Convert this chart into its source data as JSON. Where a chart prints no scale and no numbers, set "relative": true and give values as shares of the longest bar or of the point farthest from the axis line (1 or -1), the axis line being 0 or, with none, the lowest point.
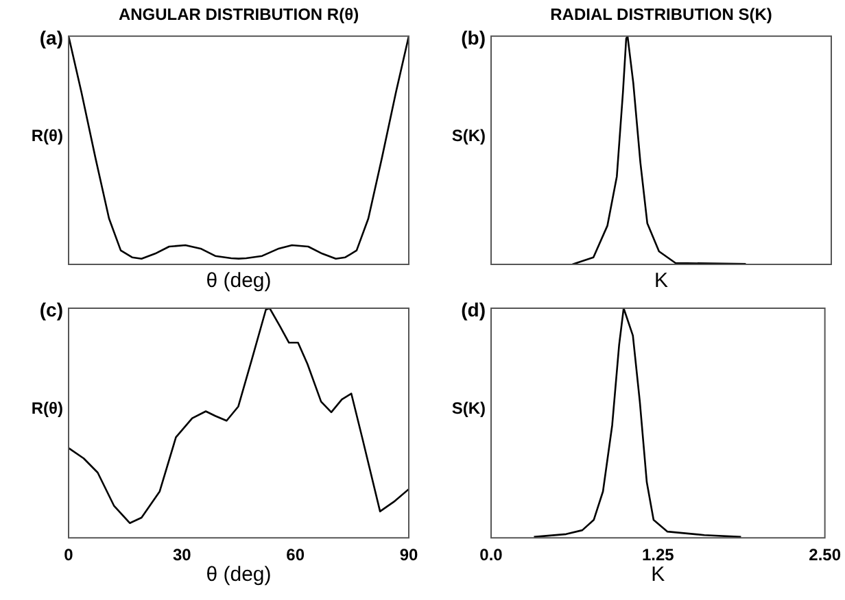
{
  "chart_data": [
    {
      "type": "line",
      "title": "ANGULAR DISTRIBUTION R(θ)",
      "xlabel": "θ (deg)",
      "ylabel": "R(θ)",
      "annotations": [
        "(a)"
      ],
      "relative": true,
      "tick_labels": false,
      "xlim": [
        0,
        90
      ],
      "x": [
        0,
        3.4,
        7.1,
        10.7,
        13.8,
        16.8,
        19.3,
        22.9,
        26.6,
        30.9,
        35.1,
        38.8,
        43.0,
        45,
        47.0,
        51.2,
        55.4,
        59.1,
        63.4,
        67.1,
        70.7,
        73.2,
        76.2,
        79.3,
        82.9,
        86.6,
        90
      ],
      "series": [
        {
          "color": "#000000",
          "values": [
            1.0,
            0.754,
            0.467,
            0.201,
            0.061,
            0.031,
            0.025,
            0.047,
            0.078,
            0.084,
            0.068,
            0.037,
            0.027,
            0.025,
            0.027,
            0.037,
            0.068,
            0.084,
            0.078,
            0.047,
            0.025,
            0.031,
            0.061,
            0.201,
            0.467,
            0.754,
            1.0
          ]
        }
      ]
    },
    {
      "type": "line",
      "title": "RADIAL DISTRIBUTION S(K)",
      "xlabel": "K",
      "ylabel": "S(K)",
      "annotations": [
        "(b)"
      ],
      "relative": true,
      "tick_labels": false,
      "xlim": [
        0,
        2.5
      ],
      "x": [
        0.597,
        0.752,
        0.855,
        0.924,
        0.969,
        0.993,
        1.003,
        1.045,
        1.097,
        1.148,
        1.234,
        1.355,
        1.872
      ],
      "series": [
        {
          "color": "#000000",
          "values": [
            0,
            0.031,
            0.17,
            0.385,
            0.754,
            0.99,
            1.0,
            0.795,
            0.447,
            0.18,
            0.057,
            0.006,
            0.002
          ]
        }
      ]
    },
    {
      "type": "line",
      "xlabel": "θ (deg)",
      "ylabel": "R(θ)",
      "annotations": [
        "(c)"
      ],
      "relative": true,
      "tick_labels": "x",
      "xlim": [
        0,
        90
      ],
      "xticks": [
        0,
        30,
        60,
        90
      ],
      "x": [
        0,
        4.0,
        7.7,
        12.0,
        16.2,
        19.3,
        24.1,
        28.4,
        32.7,
        36.3,
        38.8,
        41.8,
        44.9,
        48.5,
        52.2,
        53.2,
        55.9,
        58.3,
        60.7,
        63.2,
        66.8,
        69.5,
        72.3,
        74.8,
        77.8,
        82.4,
        86.3,
        90
      ],
      "series": [
        {
          "color": "#000000",
          "values": [
            0.391,
            0.346,
            0.284,
            0.14,
            0.064,
            0.088,
            0.202,
            0.438,
            0.521,
            0.551,
            0.531,
            0.51,
            0.572,
            0.778,
            0.994,
            1.0,
            0.922,
            0.85,
            0.85,
            0.757,
            0.593,
            0.547,
            0.603,
            0.628,
            0.428,
            0.115,
            0.16,
            0.212
          ]
        }
      ]
    },
    {
      "type": "line",
      "xlabel": "K",
      "ylabel": "S(K)",
      "annotations": [
        "(d)"
      ],
      "relative": true,
      "tick_labels": "x",
      "xlim": [
        0,
        2.5
      ],
      "xticks": [
        {
          "value": 0,
          "label": "0.0"
        },
        {
          "value": 1.25,
          "label": "1.25"
        },
        {
          "value": 2.5,
          "label": "2.50"
        }
      ],
      "x": [
        0.321,
        0.562,
        0.683,
        0.769,
        0.838,
        0.907,
        0.959,
        0.993,
        1.062,
        1.114,
        1.166,
        1.217,
        1.321,
        1.597,
        1.872
      ],
      "series": [
        {
          "color": "#000000",
          "values": [
            0.004,
            0.016,
            0.033,
            0.078,
            0.202,
            0.49,
            0.84,
            1.0,
            0.881,
            0.593,
            0.243,
            0.078,
            0.027,
            0.012,
            0.004
          ]
        }
      ]
    }
  ]
}
